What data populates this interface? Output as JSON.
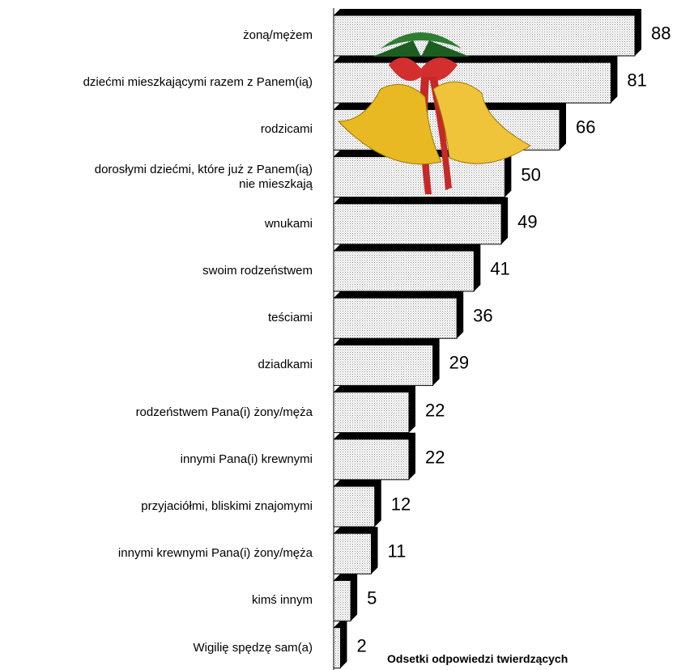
{
  "chart_data": {
    "type": "bar",
    "orientation": "horizontal",
    "categories": [
      "żoną/mężem",
      "dziećmi mieszkającymi razem z Panem(ią)",
      "rodzicami",
      "dorosłymi dziećmi, które już z Panem(ią)\nnie mieszkają",
      "wnukami",
      "swoim rodzeństwem",
      "teściami",
      "dziadkami",
      "rodzeństwem Pana(i) żony/męża",
      "innymi Pana(i) krewnymi",
      "przyjaciółmi, bliskimi znajomymi",
      "innymi krewnymi Pana(i) żony/męża",
      "kimś innym",
      "Wigilię spędzę sam(a)"
    ],
    "values": [
      88,
      81,
      66,
      50,
      49,
      41,
      36,
      29,
      22,
      22,
      12,
      11,
      5,
      2
    ],
    "color": "#e6e6e6",
    "annotation": "Odsetki odpowiedzi twierdzących"
  }
}
